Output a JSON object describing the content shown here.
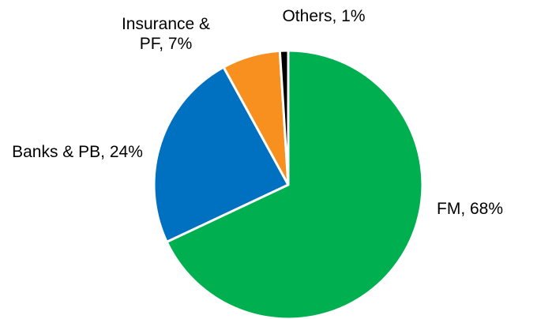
{
  "chart_data": {
    "type": "pie",
    "values": [
      68,
      24,
      7,
      1
    ],
    "value_labels": [
      "FM, 68%",
      "Banks & PB, 24%",
      "Insurance & PF, 7%",
      "Others, 1%"
    ],
    "colors": [
      "#00b050",
      "#0070c0",
      "#f7901e",
      "#000000"
    ],
    "start_angle": 0,
    "direction": "clockwise"
  }
}
